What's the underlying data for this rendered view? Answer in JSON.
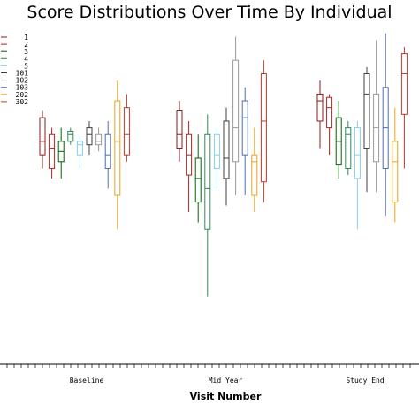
{
  "chart_data": {
    "type": "boxplot",
    "title": "Score Distributions Over Time By Individual",
    "xlabel": "Visit Number",
    "ylabel": "",
    "categories": [
      "Baseline",
      "Mid Year",
      "Study End"
    ],
    "ylim": [
      0,
      100
    ],
    "grid": false,
    "legend_position": "top-left",
    "series": [
      {
        "name": "1",
        "color": "#8b1a1a",
        "boxes": [
          {
            "min": 58,
            "q1": 62,
            "median": 66,
            "q3": 73,
            "max": 75
          },
          {
            "min": 60,
            "q1": 64,
            "median": 68,
            "q3": 75,
            "max": 78
          },
          {
            "min": 64,
            "q1": 72,
            "median": 78,
            "q3": 80,
            "max": 84
          }
        ]
      },
      {
        "name": "2",
        "color": "#b22222",
        "boxes": [
          {
            "min": 55,
            "q1": 58,
            "median": 64,
            "q3": 68,
            "max": 70
          },
          {
            "min": 45,
            "q1": 56,
            "median": 62,
            "q3": 68,
            "max": 72
          },
          {
            "min": 62,
            "q1": 70,
            "median": 76,
            "q3": 79,
            "max": 80
          }
        ]
      },
      {
        "name": "3",
        "color": "#006400",
        "boxes": [
          {
            "min": 55,
            "q1": 60,
            "median": 63,
            "q3": 66,
            "max": 70
          },
          {
            "min": 42,
            "q1": 48,
            "median": 55,
            "q3": 61,
            "max": 68
          },
          {
            "min": 55,
            "q1": 59,
            "median": 66,
            "q3": 73,
            "max": 78
          }
        ]
      },
      {
        "name": "4",
        "color": "#2e8b57",
        "boxes": [
          {
            "min": 65,
            "q1": 66,
            "median": 68,
            "q3": 69,
            "max": 70
          },
          {
            "min": 20,
            "q1": 40,
            "median": 52,
            "q3": 68,
            "max": 74
          },
          {
            "min": 56,
            "q1": 58,
            "median": 68,
            "q3": 70,
            "max": 72
          }
        ]
      },
      {
        "name": "5",
        "color": "#87ceeb",
        "boxes": [
          {
            "min": 58,
            "q1": 62,
            "median": 65,
            "q3": 66,
            "max": 68
          },
          {
            "min": 52,
            "q1": 58,
            "median": 62,
            "q3": 68,
            "max": 70
          },
          {
            "min": 40,
            "q1": 55,
            "median": 62,
            "q3": 70,
            "max": 72
          }
        ]
      },
      {
        "name": "101",
        "color": "#404040",
        "boxes": [
          {
            "min": 62,
            "q1": 65,
            "median": 68,
            "q3": 70,
            "max": 72
          },
          {
            "min": 47,
            "q1": 55,
            "median": 61,
            "q3": 72,
            "max": 76
          },
          {
            "min": 51,
            "q1": 64,
            "median": 80,
            "q3": 86,
            "max": 88
          }
        ]
      },
      {
        "name": "102",
        "color": "#999999",
        "boxes": [
          {
            "min": 63,
            "q1": 65,
            "median": 66,
            "q3": 68,
            "max": 70
          },
          {
            "min": 50,
            "q1": 60,
            "median": 70,
            "q3": 90,
            "max": 97
          },
          {
            "min": 51,
            "q1": 60,
            "median": 70,
            "q3": 80,
            "max": 96
          }
        ]
      },
      {
        "name": "103",
        "color": "#4f6db0",
        "boxes": [
          {
            "min": 52,
            "q1": 58,
            "median": 62,
            "q3": 68,
            "max": 72
          },
          {
            "min": 50,
            "q1": 62,
            "median": 73,
            "q3": 78,
            "max": 82
          },
          {
            "min": 44,
            "q1": 58,
            "median": 70,
            "q3": 82,
            "max": 98
          }
        ]
      },
      {
        "name": "202",
        "color": "#e8a31c",
        "boxes": [
          {
            "min": 40,
            "q1": 50,
            "median": 66,
            "q3": 78,
            "max": 84
          },
          {
            "min": 45,
            "q1": 50,
            "median": 60,
            "q3": 62,
            "max": 70
          },
          {
            "min": 42,
            "q1": 48,
            "median": 60,
            "q3": 66,
            "max": 76
          }
        ]
      },
      {
        "name": "302",
        "color": "#c0392b",
        "boxes": [
          {
            "min": 60,
            "q1": 62,
            "median": 68,
            "q3": 76,
            "max": 80
          },
          {
            "min": 48,
            "q1": 54,
            "median": 72,
            "q3": 86,
            "max": 90
          },
          {
            "min": 58,
            "q1": 74,
            "median": 86,
            "q3": 92,
            "max": 94
          }
        ]
      }
    ]
  }
}
